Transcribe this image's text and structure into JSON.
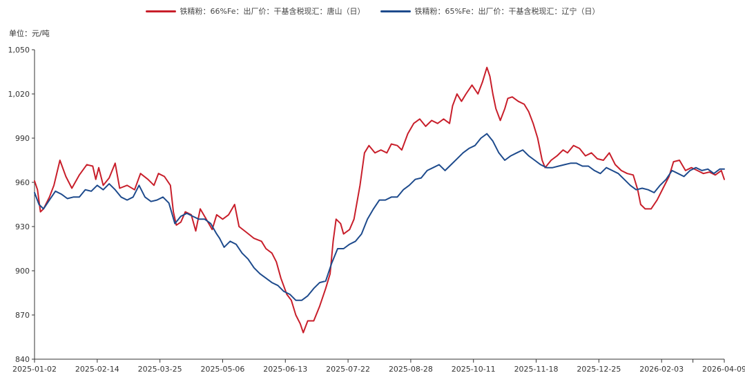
{
  "unit_label": "单位：元/吨",
  "chart_data": {
    "type": "line",
    "ylim": [
      840,
      1050
    ],
    "yticks": [
      840,
      870,
      900,
      930,
      960,
      990,
      1020,
      1050
    ],
    "ytick_labels": [
      "840",
      "870",
      "900",
      "930",
      "960",
      "990",
      "1,020",
      "1,050"
    ],
    "xlim": [
      "2025-01-02",
      "2026-04-09"
    ],
    "xtick_labels": [
      "2025-01-02",
      "2025-02-14",
      "2025-03-25",
      "2025-05-06",
      "2025-06-13",
      "2025-07-22",
      "2025-08-28",
      "2025-10-11",
      "2025-11-18",
      "2025-12-25",
      "2026-02-03",
      "2026-04-09"
    ],
    "grid": false,
    "legend_position": "top",
    "series": [
      {
        "name": "铁精粉：66%Fe：出厂价：干基含税现汇：唐山（日）",
        "color": "#c81e2a",
        "points": [
          [
            "2025-01-02",
            961
          ],
          [
            "2025-01-04",
            955
          ],
          [
            "2025-01-06",
            940
          ],
          [
            "2025-01-08",
            942
          ],
          [
            "2025-01-12",
            950
          ],
          [
            "2025-01-15",
            958
          ],
          [
            "2025-01-19",
            975
          ],
          [
            "2025-01-23",
            964
          ],
          [
            "2025-01-27",
            956
          ],
          [
            "2025-02-01",
            965
          ],
          [
            "2025-02-06",
            972
          ],
          [
            "2025-02-10",
            971
          ],
          [
            "2025-02-12",
            962
          ],
          [
            "2025-02-14",
            970
          ],
          [
            "2025-02-17",
            958
          ],
          [
            "2025-02-21",
            963
          ],
          [
            "2025-02-25",
            973
          ],
          [
            "2025-02-28",
            956
          ],
          [
            "2025-03-05",
            958
          ],
          [
            "2025-03-10",
            955
          ],
          [
            "2025-03-14",
            966
          ],
          [
            "2025-03-19",
            962
          ],
          [
            "2025-03-23",
            958
          ],
          [
            "2025-03-26",
            966
          ],
          [
            "2025-03-30",
            964
          ],
          [
            "2025-04-03",
            958
          ],
          [
            "2025-04-05",
            940
          ],
          [
            "2025-04-07",
            931
          ],
          [
            "2025-04-10",
            933
          ],
          [
            "2025-04-13",
            940
          ],
          [
            "2025-04-17",
            938
          ],
          [
            "2025-04-20",
            927
          ],
          [
            "2025-04-23",
            942
          ],
          [
            "2025-04-27",
            935
          ],
          [
            "2025-05-01",
            928
          ],
          [
            "2025-05-04",
            938
          ],
          [
            "2025-05-08",
            935
          ],
          [
            "2025-05-12",
            938
          ],
          [
            "2025-05-16",
            945
          ],
          [
            "2025-05-19",
            930
          ],
          [
            "2025-05-24",
            926
          ],
          [
            "2025-05-29",
            922
          ],
          [
            "2025-06-03",
            920
          ],
          [
            "2025-06-06",
            915
          ],
          [
            "2025-06-10",
            912
          ],
          [
            "2025-06-13",
            906
          ],
          [
            "2025-06-16",
            895
          ],
          [
            "2025-06-20",
            884
          ],
          [
            "2025-06-23",
            880
          ],
          [
            "2025-06-26",
            870
          ],
          [
            "2025-06-29",
            864
          ],
          [
            "2025-07-01",
            858
          ],
          [
            "2025-07-04",
            866
          ],
          [
            "2025-07-08",
            866
          ],
          [
            "2025-07-12",
            876
          ],
          [
            "2025-07-16",
            888
          ],
          [
            "2025-07-19",
            898
          ],
          [
            "2025-07-21",
            920
          ],
          [
            "2025-07-23",
            935
          ],
          [
            "2025-07-26",
            932
          ],
          [
            "2025-07-28",
            925
          ],
          [
            "2025-08-01",
            928
          ],
          [
            "2025-08-04",
            935
          ],
          [
            "2025-08-08",
            958
          ],
          [
            "2025-08-11",
            980
          ],
          [
            "2025-08-14",
            985
          ],
          [
            "2025-08-18",
            980
          ],
          [
            "2025-08-22",
            982
          ],
          [
            "2025-08-26",
            980
          ],
          [
            "2025-08-29",
            986
          ],
          [
            "2025-09-02",
            985
          ],
          [
            "2025-09-05",
            982
          ],
          [
            "2025-09-09",
            993
          ],
          [
            "2025-09-13",
            1000
          ],
          [
            "2025-09-17",
            1003
          ],
          [
            "2025-09-21",
            998
          ],
          [
            "2025-09-25",
            1002
          ],
          [
            "2025-09-29",
            1000
          ],
          [
            "2025-10-03",
            1003
          ],
          [
            "2025-10-07",
            1000
          ],
          [
            "2025-10-09",
            1012
          ],
          [
            "2025-10-12",
            1020
          ],
          [
            "2025-10-15",
            1015
          ],
          [
            "2025-10-18",
            1020
          ],
          [
            "2025-10-22",
            1026
          ],
          [
            "2025-10-26",
            1020
          ],
          [
            "2025-10-29",
            1028
          ],
          [
            "2025-11-01",
            1038
          ],
          [
            "2025-11-03",
            1032
          ],
          [
            "2025-11-05",
            1020
          ],
          [
            "2025-11-07",
            1010
          ],
          [
            "2025-11-10",
            1002
          ],
          [
            "2025-11-13",
            1010
          ],
          [
            "2025-11-15",
            1017
          ],
          [
            "2025-11-18",
            1018
          ],
          [
            "2025-11-22",
            1015
          ],
          [
            "2025-11-26",
            1013
          ],
          [
            "2025-11-29",
            1008
          ],
          [
            "2025-12-02",
            1000
          ],
          [
            "2025-12-05",
            990
          ],
          [
            "2025-12-08",
            975
          ],
          [
            "2025-12-10",
            970
          ],
          [
            "2025-12-14",
            975
          ],
          [
            "2025-12-18",
            978
          ],
          [
            "2025-12-22",
            982
          ],
          [
            "2025-12-25",
            980
          ],
          [
            "2025-12-29",
            985
          ],
          [
            "2026-01-02",
            983
          ],
          [
            "2026-01-06",
            978
          ],
          [
            "2026-01-10",
            980
          ],
          [
            "2026-01-14",
            976
          ],
          [
            "2026-01-18",
            975
          ],
          [
            "2026-01-22",
            980
          ],
          [
            "2026-01-26",
            972
          ],
          [
            "2026-01-30",
            968
          ],
          [
            "2026-02-03",
            966
          ],
          [
            "2026-02-07",
            965
          ],
          [
            "2026-02-10",
            955
          ],
          [
            "2026-02-12",
            945
          ],
          [
            "2026-02-15",
            942
          ],
          [
            "2026-02-19",
            942
          ],
          [
            "2026-02-23",
            948
          ],
          [
            "2026-02-27",
            956
          ],
          [
            "2026-03-03",
            964
          ],
          [
            "2026-03-06",
            974
          ],
          [
            "2026-03-10",
            975
          ],
          [
            "2026-03-14",
            968
          ],
          [
            "2026-03-18",
            970
          ],
          [
            "2026-03-22",
            968
          ],
          [
            "2026-03-26",
            966
          ],
          [
            "2026-03-30",
            967
          ],
          [
            "2026-04-03",
            965
          ],
          [
            "2026-04-07",
            968
          ],
          [
            "2026-04-09",
            962
          ]
        ]
      },
      {
        "name": "铁精粉：65%Fe：出厂价：干基含税现汇：辽宁（日）",
        "color": "#1d4a8c",
        "points": [
          [
            "2025-01-02",
            953
          ],
          [
            "2025-01-05",
            945
          ],
          [
            "2025-01-08",
            942
          ],
          [
            "2025-01-12",
            948
          ],
          [
            "2025-01-16",
            954
          ],
          [
            "2025-01-20",
            952
          ],
          [
            "2025-01-24",
            949
          ],
          [
            "2025-01-28",
            950
          ],
          [
            "2025-02-01",
            950
          ],
          [
            "2025-02-05",
            955
          ],
          [
            "2025-02-09",
            954
          ],
          [
            "2025-02-13",
            958
          ],
          [
            "2025-02-17",
            955
          ],
          [
            "2025-02-21",
            959
          ],
          [
            "2025-02-25",
            955
          ],
          [
            "2025-03-01",
            950
          ],
          [
            "2025-03-05",
            948
          ],
          [
            "2025-03-09",
            950
          ],
          [
            "2025-03-13",
            958
          ],
          [
            "2025-03-17",
            950
          ],
          [
            "2025-03-21",
            947
          ],
          [
            "2025-03-25",
            948
          ],
          [
            "2025-03-29",
            950
          ],
          [
            "2025-04-02",
            946
          ],
          [
            "2025-04-06",
            932
          ],
          [
            "2025-04-10",
            937
          ],
          [
            "2025-04-14",
            939
          ],
          [
            "2025-04-18",
            937
          ],
          [
            "2025-04-22",
            935
          ],
          [
            "2025-04-26",
            935
          ],
          [
            "2025-04-30",
            932
          ],
          [
            "2025-05-04",
            925
          ],
          [
            "2025-05-06",
            922
          ],
          [
            "2025-05-09",
            916
          ],
          [
            "2025-05-13",
            920
          ],
          [
            "2025-05-17",
            918
          ],
          [
            "2025-05-21",
            912
          ],
          [
            "2025-05-25",
            908
          ],
          [
            "2025-05-29",
            902
          ],
          [
            "2025-06-02",
            898
          ],
          [
            "2025-06-06",
            895
          ],
          [
            "2025-06-10",
            892
          ],
          [
            "2025-06-14",
            890
          ],
          [
            "2025-06-18",
            886
          ],
          [
            "2025-06-22",
            884
          ],
          [
            "2025-06-26",
            880
          ],
          [
            "2025-06-30",
            880
          ],
          [
            "2025-07-04",
            883
          ],
          [
            "2025-07-08",
            888
          ],
          [
            "2025-07-12",
            892
          ],
          [
            "2025-07-16",
            893
          ],
          [
            "2025-07-20",
            905
          ],
          [
            "2025-07-24",
            915
          ],
          [
            "2025-07-28",
            915
          ],
          [
            "2025-08-01",
            918
          ],
          [
            "2025-08-05",
            920
          ],
          [
            "2025-08-09",
            925
          ],
          [
            "2025-08-13",
            935
          ],
          [
            "2025-08-17",
            942
          ],
          [
            "2025-08-21",
            948
          ],
          [
            "2025-08-25",
            948
          ],
          [
            "2025-08-29",
            950
          ],
          [
            "2025-09-02",
            950
          ],
          [
            "2025-09-06",
            955
          ],
          [
            "2025-09-10",
            958
          ],
          [
            "2025-09-14",
            962
          ],
          [
            "2025-09-18",
            963
          ],
          [
            "2025-09-22",
            968
          ],
          [
            "2025-09-26",
            970
          ],
          [
            "2025-09-30",
            972
          ],
          [
            "2025-10-04",
            968
          ],
          [
            "2025-10-08",
            972
          ],
          [
            "2025-10-12",
            976
          ],
          [
            "2025-10-16",
            980
          ],
          [
            "2025-10-20",
            983
          ],
          [
            "2025-10-24",
            985
          ],
          [
            "2025-10-28",
            990
          ],
          [
            "2025-11-01",
            993
          ],
          [
            "2025-11-05",
            988
          ],
          [
            "2025-11-09",
            980
          ],
          [
            "2025-11-13",
            975
          ],
          [
            "2025-11-17",
            978
          ],
          [
            "2025-11-21",
            980
          ],
          [
            "2025-11-25",
            982
          ],
          [
            "2025-11-29",
            978
          ],
          [
            "2025-12-03",
            975
          ],
          [
            "2025-12-07",
            972
          ],
          [
            "2025-12-11",
            970
          ],
          [
            "2025-12-15",
            970
          ],
          [
            "2025-12-19",
            971
          ],
          [
            "2025-12-23",
            972
          ],
          [
            "2025-12-27",
            973
          ],
          [
            "2025-12-31",
            973
          ],
          [
            "2026-01-04",
            971
          ],
          [
            "2026-01-08",
            971
          ],
          [
            "2026-01-12",
            968
          ],
          [
            "2026-01-16",
            966
          ],
          [
            "2026-01-20",
            970
          ],
          [
            "2026-01-24",
            968
          ],
          [
            "2026-01-28",
            966
          ],
          [
            "2026-02-01",
            962
          ],
          [
            "2026-02-05",
            958
          ],
          [
            "2026-02-09",
            955
          ],
          [
            "2026-02-13",
            956
          ],
          [
            "2026-02-17",
            955
          ],
          [
            "2026-02-21",
            953
          ],
          [
            "2026-02-25",
            958
          ],
          [
            "2026-03-01",
            962
          ],
          [
            "2026-03-05",
            968
          ],
          [
            "2026-03-09",
            966
          ],
          [
            "2026-03-13",
            964
          ],
          [
            "2026-03-17",
            968
          ],
          [
            "2026-03-21",
            970
          ],
          [
            "2026-03-25",
            968
          ],
          [
            "2026-03-29",
            969
          ],
          [
            "2026-04-02",
            966
          ],
          [
            "2026-04-06",
            969
          ],
          [
            "2026-04-09",
            969
          ]
        ]
      }
    ]
  }
}
